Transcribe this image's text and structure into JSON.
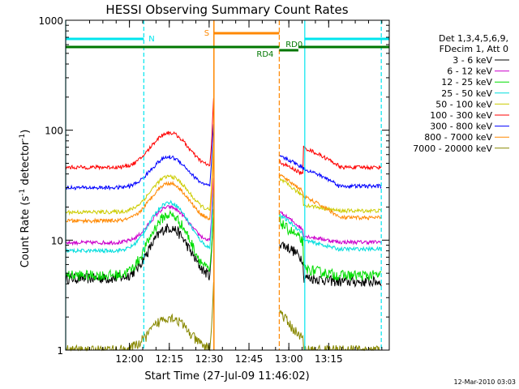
{
  "chart_data": {
    "type": "line",
    "title": "HESSI Observing Summary Count Rates",
    "xlabel": "Start Time (27-Jul-09 11:46:02)",
    "ylabel_main": "Count Rate (s",
    "ylabel_sup1": "-1",
    "ylabel_mid": " detector",
    "ylabel_sup2": "-1",
    "ylabel_end": ")",
    "footer": "12-Mar-2010 03:03",
    "y_scale": "log",
    "ylim": [
      1,
      1000
    ],
    "xlim": [
      11.6,
      13.63
    ],
    "x_ticks": [
      {
        "v": 12.0,
        "label": "12:00"
      },
      {
        "v": 12.25,
        "label": "12:15"
      },
      {
        "v": 12.5,
        "label": "12:30"
      },
      {
        "v": 12.75,
        "label": "12:45"
      },
      {
        "v": 13.0,
        "label": "13:00"
      },
      {
        "v": 13.25,
        "label": "13:15"
      }
    ],
    "y_ticks": [
      {
        "v": 1,
        "label": "1"
      },
      {
        "v": 10,
        "label": "10"
      },
      {
        "v": 100,
        "label": "100"
      },
      {
        "v": 1000,
        "label": "1000"
      }
    ],
    "legend": {
      "header1": "Det 1,3,4,5,6,9,",
      "header2": "FDecim 1, Att 0",
      "placement": "right"
    },
    "series": [
      {
        "name": "3 - 6 keV",
        "color": "#000000",
        "base": 4.5,
        "peak": 13,
        "post": [
          9.5,
          8.8,
          8.2,
          7.3,
          6.5
        ],
        "tail": [
          4.6,
          4.2,
          4.2
        ]
      },
      {
        "name": "6 - 12 keV",
        "color": "#cc00cc",
        "base": 9.5,
        "peak": 20,
        "post": [
          18,
          16.5,
          15,
          13.5,
          12
        ],
        "tail": [
          11,
          9.6,
          9.6
        ]
      },
      {
        "name": "12 - 25 keV",
        "color": "#00dd00",
        "base": 4.8,
        "peak": 17,
        "post": [
          15,
          13,
          12,
          10.5,
          9.5
        ],
        "tail": [
          5.5,
          4.8,
          4.8
        ]
      },
      {
        "name": "25 - 50 keV",
        "color": "#00dddd",
        "base": 8.0,
        "peak": 22,
        "post": [
          17,
          15.5,
          14,
          12.5,
          11
        ],
        "tail": [
          10,
          8.3,
          8.3
        ]
      },
      {
        "name": "50 - 100 keV",
        "color": "#cccc00",
        "base": 18,
        "peak": 38,
        "post": [
          36,
          33,
          30,
          27,
          25
        ],
        "tail": [
          21,
          18.5,
          18.5
        ]
      },
      {
        "name": "100 - 300 keV",
        "color": "#ff0000",
        "base": 46,
        "peak": 95,
        "post": [
          52,
          48,
          45,
          42,
          39
        ],
        "tail": [
          70,
          48,
          46
        ]
      },
      {
        "name": "300 - 800 keV",
        "color": "#0000ff",
        "base": 30,
        "peak": 57,
        "post": [
          58,
          55,
          52,
          48,
          45
        ],
        "tail": [
          45,
          32,
          31
        ]
      },
      {
        "name": "800 - 7000 keV",
        "color": "#ff8800",
        "base": 15,
        "peak": 33,
        "post": [
          40,
          36,
          33,
          30,
          27
        ],
        "tail": [
          25,
          16.5,
          16
        ]
      },
      {
        "name": "7000 - 20000 keV",
        "color": "#888800",
        "base": 1.0,
        "peak": 2.0,
        "post": [
          2.3,
          1.9,
          1.6,
          1.4,
          1.2
        ],
        "tail": [
          1.0,
          1.0,
          1.0
        ]
      }
    ],
    "annotations": {
      "night_label": "N",
      "saa_label": "S",
      "rd4_label": "RD4",
      "rd0_label": "RD0",
      "night_color": "#00e5ee",
      "saa_color": "#ff8800",
      "decim_color": "#007700",
      "night_bars": [
        [
          11.6,
          12.09
        ],
        [
          13.1,
          13.63
        ]
      ],
      "night_edges": [
        11.6,
        12.09,
        13.1,
        13.58
      ],
      "saa_bar": [
        12.53,
        12.94
      ],
      "saa_edges": [
        12.53,
        12.94
      ],
      "decim_bar": [
        11.6,
        13.63
      ]
    }
  }
}
